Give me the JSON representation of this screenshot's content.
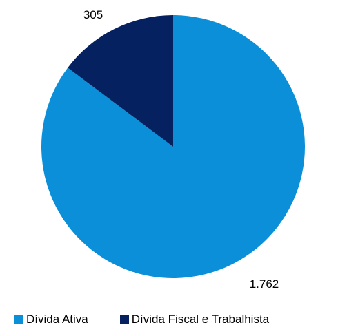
{
  "chart_data": {
    "type": "pie",
    "title": "",
    "start_angle": "12 o'clock",
    "direction": "clockwise",
    "legend_position": "bottom",
    "slices": [
      {
        "label": "Dívida Ativa",
        "value": 1762,
        "value_label": "1.762",
        "color": "#0a8fd8"
      },
      {
        "label": "Dívida Fiscal e Trabalhista",
        "value": 305,
        "value_label": "305",
        "color": "#062160"
      }
    ]
  }
}
